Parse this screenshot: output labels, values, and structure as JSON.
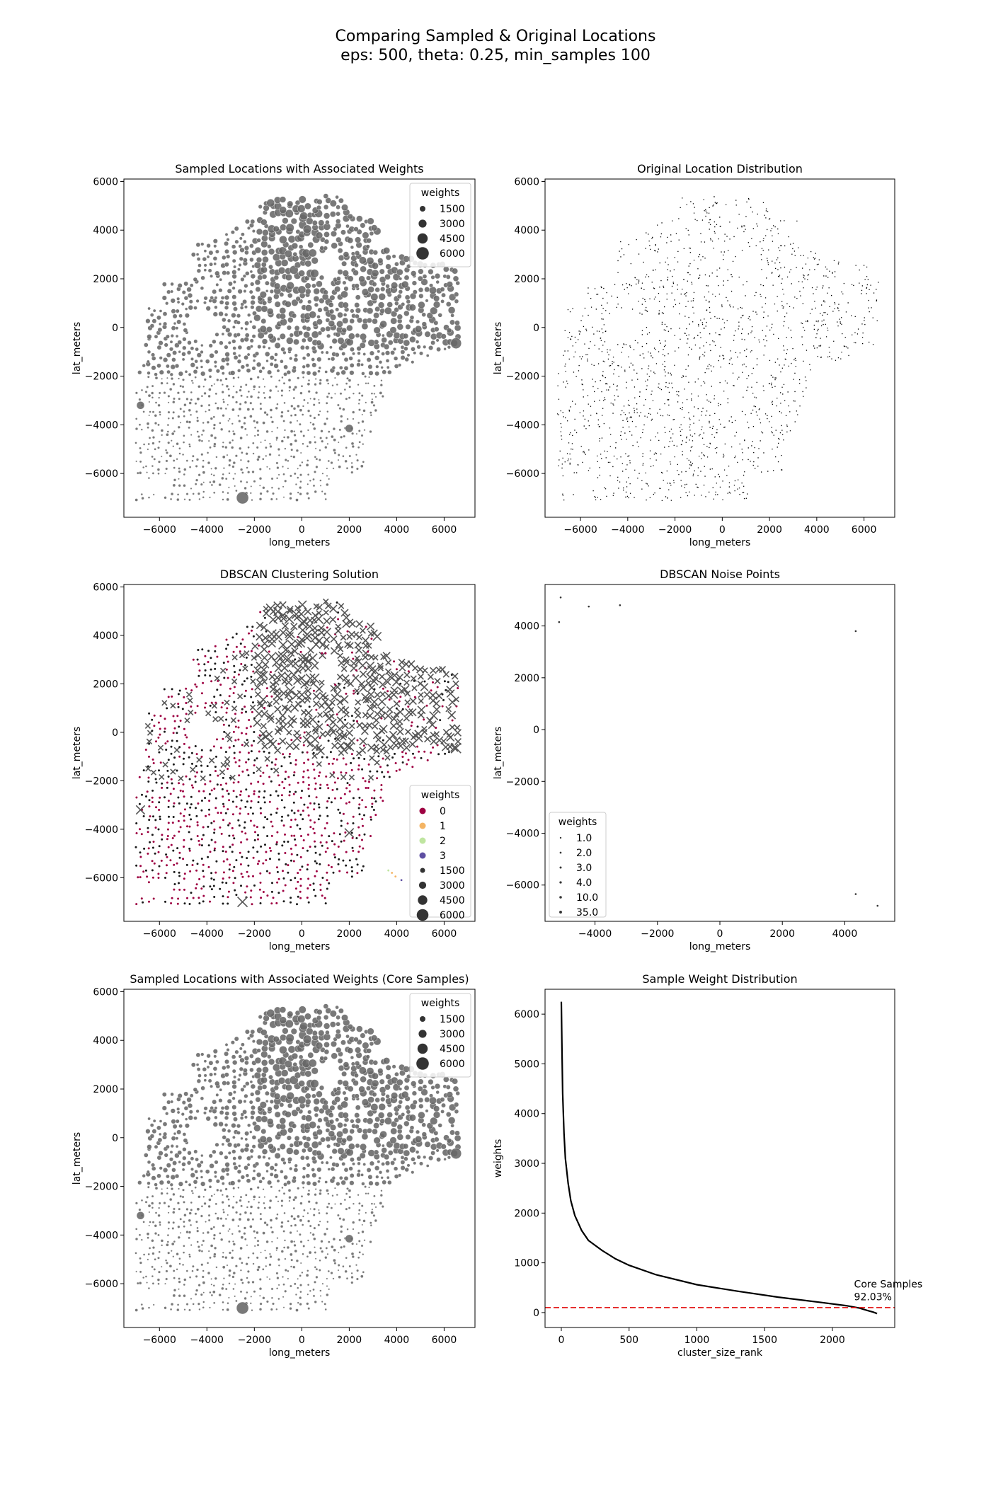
{
  "figure": {
    "title_line1": "Comparing Sampled & Original Locations",
    "title_line2": "eps: 500, theta: 0.25, min_samples 100"
  },
  "chart_data": [
    {
      "id": "sampled",
      "type": "scatter",
      "title": "Sampled Locations with Associated Weights",
      "xlabel": "long_meters",
      "ylabel": "lat_meters",
      "xlim": [
        -7500,
        7300
      ],
      "ylim": [
        -7800,
        6100
      ],
      "xticks": [
        -6000,
        -4000,
        -2000,
        0,
        2000,
        4000,
        6000
      ],
      "yticks": [
        -6000,
        -4000,
        -2000,
        0,
        2000,
        4000,
        6000
      ],
      "grid": false,
      "legend": {
        "placement": "top-right",
        "title": "weights",
        "entries": [
          "1500",
          "3000",
          "4500",
          "6000"
        ]
      },
      "color": "#666666",
      "points_note": "about 2300 sampled points; sizes scale with weight"
    },
    {
      "id": "original",
      "type": "scatter",
      "title": "Original Location Distribution",
      "xlabel": "long_meters",
      "ylabel": "lat_meters",
      "xlim": [
        -7500,
        7300
      ],
      "ylim": [
        -7800,
        6100
      ],
      "xticks": [
        -6000,
        -4000,
        -2000,
        0,
        2000,
        4000,
        6000
      ],
      "yticks": [
        -6000,
        -4000,
        -2000,
        0,
        2000,
        4000,
        6000
      ],
      "grid": false,
      "color": "#000000"
    },
    {
      "id": "dbscan",
      "type": "scatter",
      "title": "DBSCAN Clustering Solution",
      "xlabel": "long_meters",
      "ylabel": "lat_meters",
      "xlim": [
        -7500,
        7300
      ],
      "ylim": [
        -7800,
        6100
      ],
      "xticks": [
        -6000,
        -4000,
        -2000,
        0,
        2000,
        4000,
        6000
      ],
      "yticks": [
        -6000,
        -4000,
        -2000,
        0,
        2000,
        4000,
        6000
      ],
      "grid": false,
      "legend": {
        "placement": "lower-right",
        "title": "weights",
        "clusters": [
          {
            "label": "0",
            "color": "#9e0142"
          },
          {
            "label": "1",
            "color": "#f4b463"
          },
          {
            "label": "2",
            "color": "#bfe5a0"
          },
          {
            "label": "3",
            "color": "#5e4fa2"
          }
        ],
        "sizes": [
          "1500",
          "3000",
          "4500",
          "6000"
        ]
      }
    },
    {
      "id": "noise",
      "type": "scatter",
      "title": "DBSCAN Noise Points",
      "xlabel": "long_meters",
      "ylabel": "lat_meters",
      "xlim": [
        -5600,
        5600
      ],
      "ylim": [
        -7400,
        5600
      ],
      "xticks": [
        -4000,
        -2000,
        0,
        2000,
        4000
      ],
      "yticks": [
        -6000,
        -4000,
        -2000,
        0,
        2000,
        4000
      ],
      "grid": false,
      "points": [
        {
          "x": -5100,
          "y": 5100
        },
        {
          "x": -5150,
          "y": 4150
        },
        {
          "x": -4200,
          "y": 4750
        },
        {
          "x": -3200,
          "y": 4800
        },
        {
          "x": 4350,
          "y": 3800
        },
        {
          "x": 4350,
          "y": -6350
        },
        {
          "x": 5050,
          "y": -6800
        }
      ],
      "legend": {
        "placement": "lower-left",
        "title": "weights",
        "entries": [
          "1.0",
          "2.0",
          "3.0",
          "4.0",
          "10.0",
          "35.0"
        ]
      }
    },
    {
      "id": "core",
      "type": "scatter",
      "title": "Sampled Locations with Associated Weights (Core Samples)",
      "xlabel": "long_meters",
      "ylabel": "lat_meters",
      "xlim": [
        -7500,
        7300
      ],
      "ylim": [
        -7800,
        6100
      ],
      "xticks": [
        -6000,
        -4000,
        -2000,
        0,
        2000,
        4000,
        6000
      ],
      "yticks": [
        -6000,
        -4000,
        -2000,
        0,
        2000,
        4000,
        6000
      ],
      "grid": false,
      "legend": {
        "placement": "top-right",
        "title": "weights",
        "entries": [
          "1500",
          "3000",
          "4500",
          "6000"
        ]
      },
      "color": "#666666"
    },
    {
      "id": "weights",
      "type": "line",
      "title": "Sample Weight Distribution",
      "xlabel": "cluster_size_rank",
      "ylabel": "weights",
      "xlim": [
        -120,
        2460
      ],
      "ylim": [
        -300,
        6500
      ],
      "xticks": [
        0,
        500,
        1000,
        1500,
        2000
      ],
      "yticks": [
        0,
        1000,
        2000,
        3000,
        4000,
        5000,
        6000
      ],
      "grid": false,
      "series": [
        {
          "x": [
            0,
            5,
            10,
            20,
            30,
            50,
            70,
            100,
            150,
            200,
            300,
            400,
            500,
            700,
            1000,
            1300,
            1600,
            1900,
            2100,
            2200,
            2260,
            2300,
            2330
          ],
          "y": [
            6250,
            5300,
            4400,
            3600,
            3100,
            2600,
            2250,
            1950,
            1650,
            1450,
            1250,
            1080,
            950,
            760,
            560,
            430,
            310,
            210,
            140,
            90,
            40,
            10,
            -20
          ],
          "color": "#000000"
        }
      ],
      "threshold": {
        "value": 100,
        "color": "#e00000",
        "style": "dashed"
      },
      "annotation": {
        "line1": "Core Samples",
        "line2": "92.03%",
        "x": 2160,
        "y": 250
      }
    }
  ]
}
